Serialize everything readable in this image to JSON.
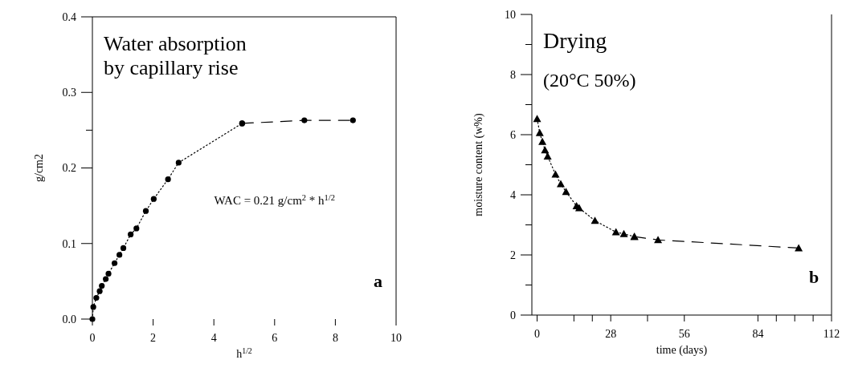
{
  "chart_data": [
    {
      "type": "line",
      "title": "Water absorption\nby capillary rise",
      "xlabel": "h$^{1/2}$",
      "ylabel": "g/cm2",
      "xlim": [
        0,
        10
      ],
      "ylim": [
        0,
        0.4
      ],
      "xticks": [
        0,
        2,
        4,
        6,
        8,
        10
      ],
      "yticks": [
        {
          "value": 0,
          "label": "0.0"
        },
        0.1,
        0.2,
        0.3,
        {
          "value": 0.25,
          "label": null
        },
        0.4
      ],
      "grid": false,
      "annotations": [
        "WAC = 0.21 g/cm$^{2}$ * h$^{1/2}$",
        "a"
      ],
      "series": [
        {
          "color": "#000000",
          "line_style": "dotted",
          "marker": "circle",
          "x": [
            0,
            0.03,
            0.13,
            0.24,
            0.31,
            0.44,
            0.53,
            0.73,
            0.89,
            1.02,
            1.26,
            1.45,
            1.76,
            2.02,
            2.49,
            2.84,
            4.93
          ],
          "values": [
            0,
            0.016,
            0.028,
            0.037,
            0.044,
            0.053,
            0.06,
            0.074,
            0.085,
            0.094,
            0.112,
            0.12,
            0.143,
            0.159,
            0.185,
            0.207,
            0.259
          ]
        },
        {
          "color": "#000000",
          "line_style": "dashed",
          "marker": "circle",
          "x": [
            4.93,
            6.98,
            8.58
          ],
          "values": [
            0.259,
            0.263,
            0.263
          ]
        }
      ]
    },
    {
      "type": "line",
      "title": "Drying",
      "subtitle": "(20°C 50%)",
      "xlabel": "time (days)",
      "ylabel": "moisture content (w%)",
      "xlim": [
        -2,
        112
      ],
      "ylim": [
        0,
        10
      ],
      "xticks": [
        0,
        {
          "value": 14,
          "label": null
        },
        {
          "value": 21,
          "label": null
        },
        28,
        {
          "value": 42,
          "label": null
        },
        56,
        84,
        {
          "value": 91,
          "label": null
        },
        {
          "value": 98,
          "label": null
        },
        {
          "value": 105,
          "label": null
        },
        112
      ],
      "yticks": [
        0,
        {
          "value": 1,
          "label": null
        },
        2,
        {
          "value": 3,
          "label": null
        },
        4,
        {
          "value": 5,
          "label": null
        },
        6,
        {
          "value": 7,
          "label": null
        },
        8,
        {
          "value": 9,
          "label": null
        },
        10
      ],
      "grid": false,
      "annotations": [
        "b"
      ],
      "series": [
        {
          "color": "#000000",
          "line_style": "dotted",
          "marker": "triangle",
          "x": [
            0,
            1,
            2,
            3,
            4,
            7,
            9,
            11,
            15,
            16,
            22,
            30,
            33,
            37
          ],
          "values": [
            6.53,
            6.06,
            5.77,
            5.49,
            5.28,
            4.68,
            4.36,
            4.1,
            3.63,
            3.56,
            3.14,
            2.76,
            2.7,
            2.61
          ]
        },
        {
          "color": "#000000",
          "line_style": "dashed",
          "marker": "triangle",
          "x": [
            37,
            46,
            99.5
          ],
          "values": [
            2.61,
            2.5,
            2.23
          ]
        }
      ]
    }
  ]
}
